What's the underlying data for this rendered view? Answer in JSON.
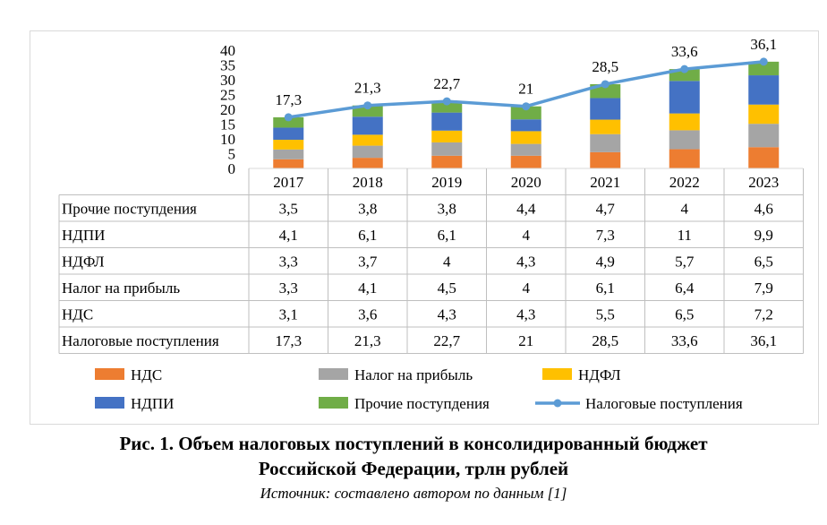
{
  "chart_data": {
    "type": "bar",
    "stacked": true,
    "categories": [
      "2017",
      "2018",
      "2019",
      "2020",
      "2021",
      "2022",
      "2023"
    ],
    "ylim": [
      0,
      40
    ],
    "yticks": [
      "0",
      "5",
      "10",
      "15",
      "20",
      "25",
      "30",
      "35",
      "40"
    ],
    "series": [
      {
        "name": "НДС",
        "color": "#ED7D31",
        "values": [
          3.1,
          3.6,
          4.3,
          4.3,
          5.5,
          6.5,
          7.2
        ],
        "labels": [
          "3,1",
          "3,6",
          "4,3",
          "4,3",
          "5,5",
          "6,5",
          "7,2"
        ]
      },
      {
        "name": "Налог на прибыль",
        "color": "#A5A5A5",
        "values": [
          3.3,
          4.1,
          4.5,
          4.0,
          6.1,
          6.4,
          7.9
        ],
        "labels": [
          "3,3",
          "4,1",
          "4,5",
          "4",
          "6,1",
          "6,4",
          "7,9"
        ]
      },
      {
        "name": "НДФЛ",
        "color": "#FFC000",
        "values": [
          3.3,
          3.7,
          4.0,
          4.3,
          4.9,
          5.7,
          6.5
        ],
        "labels": [
          "3,3",
          "3,7",
          "4",
          "4,3",
          "4,9",
          "5,7",
          "6,5"
        ]
      },
      {
        "name": "НДПИ",
        "color": "#4472C4",
        "values": [
          4.1,
          6.1,
          6.1,
          4.0,
          7.3,
          11.0,
          9.9
        ],
        "labels": [
          "4,1",
          "6,1",
          "6,1",
          "4",
          "7,3",
          "11",
          "9,9"
        ]
      },
      {
        "name": "Прочие поступдения",
        "color": "#70AD47",
        "values": [
          3.5,
          3.8,
          3.8,
          4.4,
          4.7,
          4.0,
          4.6
        ],
        "labels": [
          "3,5",
          "3,8",
          "3,8",
          "4,4",
          "4,7",
          "4",
          "4,6"
        ]
      }
    ],
    "line_series": {
      "name": "Налоговые поступления",
      "color": "#5B9BD5",
      "values": [
        17.3,
        21.3,
        22.7,
        21.0,
        28.5,
        33.6,
        36.1
      ],
      "labels": [
        "17,3",
        "21,3",
        "22,7",
        "21",
        "28,5",
        "33,6",
        "36,1"
      ]
    },
    "table_row_order": [
      "Прочие поступдения",
      "НДПИ",
      "НДФЛ",
      "Налог на прибыль",
      "НДС",
      "Налоговые поступления"
    ],
    "legend_placement": "bottom"
  },
  "caption": {
    "line1": "Рис. 1. Объем налоговых поступлений в консолидированный бюджет",
    "line2": "Российской Федерации, трлн рублей",
    "source": "Источник: составлено автором по данным [1]"
  }
}
